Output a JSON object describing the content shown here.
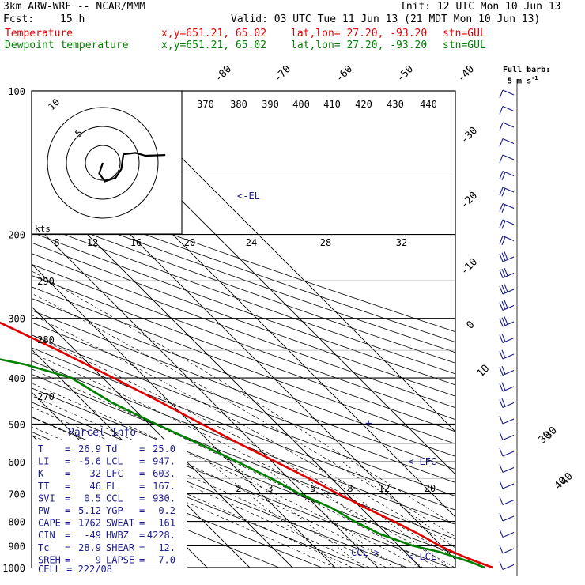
{
  "header": {
    "model": "3km ARW-WRF -- NCAR/MMM",
    "init": "Init: 12 UTC Mon 10 Jun 13",
    "fcst_label": "Fcst:",
    "fcst_value": "15 h",
    "valid": "Valid: 03 UTC Tue 11 Jun 13 (21 MDT Mon 10 Jun 13)",
    "temp_label": "Temperature",
    "dew_label": "Dewpoint temperature",
    "xy": "x,y=651.21, 65.02",
    "latlon": "lat,lon= 27.20, -93.20",
    "stn": "stn=GUL",
    "barb_note_1": "Full barb:",
    "barb_note_2": "5 m s",
    "barb_note_sup": "-1"
  },
  "colors": {
    "temperature": "#e00000",
    "dewpoint": "#008000",
    "parcel_text": "#1c1c8c",
    "grid": "#000000"
  },
  "chart_data": {
    "type": "line",
    "subtype": "skew-T log-p sounding",
    "pressure_levels": [
      "100",
      "200",
      "300",
      "400",
      "500",
      "600",
      "700",
      "800",
      "900",
      "1000"
    ],
    "temperature_ticks": [
      "-80",
      "-70",
      "-60",
      "-50",
      "-40",
      "-30",
      "-20",
      "-10",
      "0",
      "10",
      "20",
      "30",
      "40"
    ],
    "theta_labels": [
      "370",
      "380",
      "390",
      "400",
      "410",
      "420",
      "430",
      "440"
    ],
    "theta_left_labels": [
      "290",
      "280",
      "270"
    ],
    "mixing_ratio_labels": [
      "2",
      "3",
      "5",
      "8",
      "12",
      "20"
    ],
    "hodograph": {
      "unit": "kts",
      "ring_labels": [
        "8",
        "12",
        "16",
        "20",
        "24",
        "28",
        "32"
      ],
      "speed_labels": [
        "5",
        "10"
      ],
      "path": [
        [
          0,
          0
        ],
        [
          -0.5,
          -1.5
        ],
        [
          0.3,
          -2.6
        ],
        [
          1.8,
          -2.1
        ],
        [
          2.6,
          -0.9
        ],
        [
          2.9,
          1.2
        ],
        [
          4.6,
          1.4
        ],
        [
          6.0,
          1.0
        ],
        [
          8.8,
          1.1
        ]
      ]
    },
    "series": [
      {
        "name": "Temperature",
        "points": [
          [
            1000,
            26.9
          ],
          [
            975,
            24.8
          ],
          [
            950,
            22.8
          ],
          [
            925,
            21.1
          ],
          [
            900,
            19.6
          ],
          [
            850,
            17.4
          ],
          [
            800,
            14.6
          ],
          [
            750,
            11.2
          ],
          [
            700,
            8.0
          ],
          [
            650,
            4.7
          ],
          [
            600,
            0.9
          ],
          [
            550,
            -3.4
          ],
          [
            500,
            -7.6
          ],
          [
            450,
            -12.1
          ],
          [
            400,
            -17.5
          ],
          [
            350,
            -24.0
          ],
          [
            300,
            -32.3
          ],
          [
            250,
            -42.0
          ],
          [
            200,
            -52.6
          ],
          [
            175,
            -58.3
          ],
          [
            150,
            -65.0
          ],
          [
            125,
            -67.2
          ],
          [
            110,
            -64.5
          ],
          [
            100,
            -63.3
          ]
        ]
      },
      {
        "name": "Dewpoint temperature",
        "points": [
          [
            1000,
            25.0
          ],
          [
            975,
            23.2
          ],
          [
            950,
            20.6
          ],
          [
            925,
            17.8
          ],
          [
            900,
            13.3
          ],
          [
            850,
            8.3
          ],
          [
            800,
            5.4
          ],
          [
            750,
            3.2
          ],
          [
            700,
            -1.0
          ],
          [
            650,
            -4.1
          ],
          [
            600,
            -8.1
          ],
          [
            550,
            -12.8
          ],
          [
            500,
            -18.3
          ],
          [
            450,
            -23.7
          ],
          [
            400,
            -27.4
          ],
          [
            375,
            -35.0
          ],
          [
            350,
            -48.0
          ],
          [
            325,
            -60.0
          ],
          [
            300,
            -70.5
          ],
          [
            275,
            -74.0
          ],
          [
            250,
            -78.6
          ],
          [
            225,
            -79.9
          ],
          [
            200,
            -82.4
          ],
          [
            175,
            -81.0
          ],
          [
            150,
            -80.5
          ],
          [
            125,
            -83.5
          ],
          [
            110,
            -82.8
          ],
          [
            100,
            -81.3
          ]
        ]
      }
    ],
    "annotations": [
      "<-EL",
      "<-LFC",
      "<-LCL",
      "CCL->"
    ],
    "wind_barb_ticks": [
      "30",
      "40"
    ]
  },
  "parcel_info": {
    "title": "Parcel Info",
    "rows": [
      [
        "T",
        "26.9",
        "Td",
        "25.0"
      ],
      [
        "LI",
        "-5.6",
        "LCL",
        "947."
      ],
      [
        "K",
        "32",
        "LFC",
        "603."
      ],
      [
        "TT",
        "46",
        "EL",
        "167."
      ],
      [
        "SVI",
        "0.5",
        "CCL",
        "930."
      ],
      [
        "PW",
        "5.12",
        "YGP",
        "0.2"
      ],
      [
        "CAPE",
        "1762",
        "SWEAT",
        "161"
      ],
      [
        "CIN",
        "-49",
        "HWBZ",
        "4228."
      ],
      [
        "Tc",
        "28.9",
        "SHEAR",
        "12."
      ],
      [
        "SREH",
        "9",
        "LAPSE",
        "7.0"
      ]
    ],
    "cell": "CELL = 222/08"
  }
}
